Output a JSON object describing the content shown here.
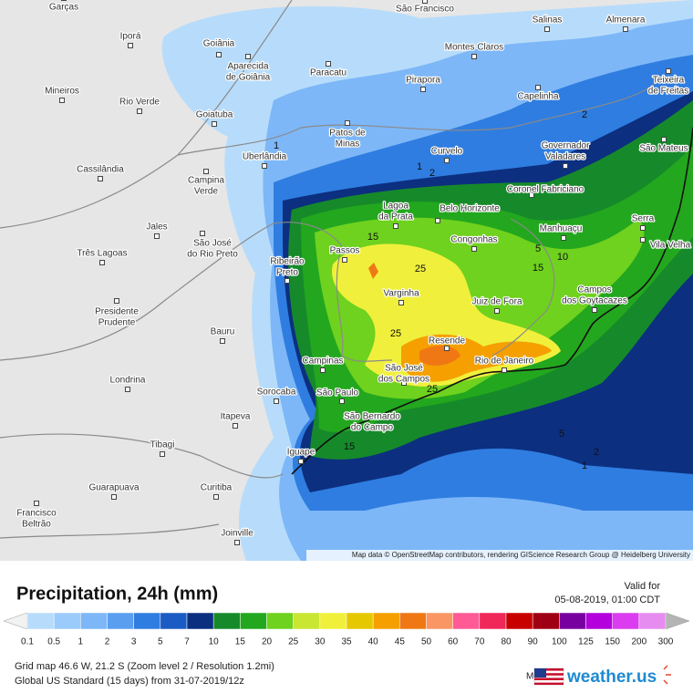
{
  "map": {
    "cities": [
      [
        "Garças"
      ],
      [
        "Iporá"
      ],
      [
        "Goiânia"
      ],
      [
        "Aparecida",
        "de Goiânia"
      ],
      [
        "Paracatu"
      ],
      [
        "São Francisco"
      ],
      [
        "Salinas"
      ],
      [
        "Almenara"
      ],
      [
        "Montes Claros"
      ],
      [
        "Pirapora"
      ],
      [
        "Teixeira",
        "de Freitas"
      ],
      [
        "Mineiros"
      ],
      [
        "Rio Verde"
      ],
      [
        "Goiatuba"
      ],
      [
        "Capelinha"
      ],
      [
        "Patos de",
        "Minas"
      ],
      [
        "Governador",
        "Valadares"
      ],
      [
        "Curvelo"
      ],
      [
        "São Mateus"
      ],
      [
        "Uberlândia"
      ],
      [
        "Cassilândia"
      ],
      [
        "Campina",
        "Verde"
      ],
      [
        "Coronel Fabriciano"
      ],
      [
        "Lagoa",
        "da Prata"
      ],
      [
        "Belo Horizonte"
      ],
      [
        "Manhuaçu"
      ],
      [
        "Serra"
      ],
      [
        "Jales"
      ],
      [
        "Vila Velha"
      ],
      [
        "Congonhas"
      ],
      [
        "Passos"
      ],
      [
        "São José",
        "do Rio Preto"
      ],
      [
        "Três Lagoas"
      ],
      [
        "Ribeirão",
        "Preto"
      ],
      [
        "Varginha"
      ],
      [
        "Campos",
        "dos Goytacazes"
      ],
      [
        "Juiz de Fora"
      ],
      [
        "Presidente",
        "Prudente"
      ],
      [
        "Bauru"
      ],
      [
        "Resende"
      ],
      [
        "Campinas"
      ],
      [
        "Rio de Janeiro"
      ],
      [
        "São José",
        "dos Campos"
      ],
      [
        "Londrina"
      ],
      [
        "Sorocaba"
      ],
      [
        "São Paulo"
      ],
      [
        "Itapeva"
      ],
      [
        "São Bernardo",
        "do Campo"
      ],
      [
        "Tibagi"
      ],
      [
        "Iguape"
      ],
      [
        "Guarapuava"
      ],
      [
        "Curitiba"
      ],
      [
        "Francisco",
        "Beltrão"
      ],
      [
        "Joinville"
      ]
    ],
    "contour_labels": [
      1,
      1,
      2,
      2,
      15,
      25,
      10,
      5,
      15,
      25,
      25,
      5,
      2,
      1,
      15
    ],
    "attribution": "Map data © OpenStreetMap contributors, rendering GIScience Research Group @ Heidelberg University"
  },
  "legend": {
    "title": "Precipitation, 24h (mm)",
    "valid_label": "Valid for",
    "valid_time": "05-08-2019, 01:00 CDT",
    "scale": [
      0.1,
      0.5,
      1,
      2,
      3,
      5,
      7,
      10,
      15,
      20,
      25,
      30,
      35,
      40,
      45,
      50,
      60,
      70,
      80,
      90,
      100,
      125,
      150,
      200,
      300
    ],
    "colors": [
      "#b7dcfb",
      "#9bcbfa",
      "#7db7f7",
      "#5a9ef0",
      "#2f7de0",
      "#1b5cc4",
      "#0c2f80",
      "#168a2a",
      "#23a71e",
      "#6fd21e",
      "#c8e632",
      "#f0f03c",
      "#e6c800",
      "#f5a000",
      "#f07814",
      "#fa9664",
      "#ff5a96",
      "#f0285a",
      "#c80000",
      "#a00014",
      "#7800a0",
      "#b400dc",
      "#dc3cf0",
      "#e68cf0"
    ]
  },
  "footer": {
    "line1": "Grid map 46.6 W, 21.2 S (Zoom level 2 / Resolution 1.2mi)",
    "line2": "Global US Standard (15 days) from 31-07-2019/12z",
    "model_label": "Model:",
    "brand": "weather.us"
  }
}
